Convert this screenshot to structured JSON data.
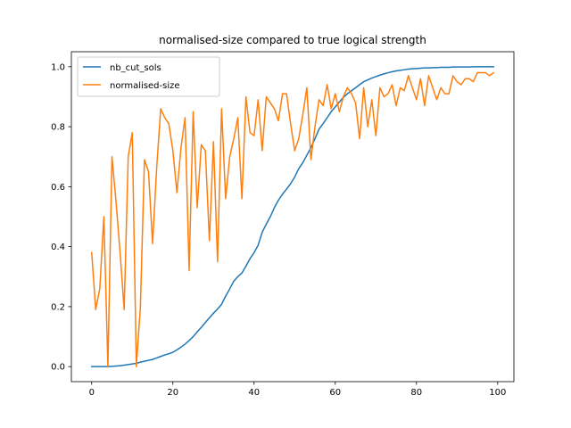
{
  "chart_data": {
    "type": "line",
    "title": "normalised-size compared to true logical strength",
    "xlabel": "",
    "ylabel": "",
    "xlim": [
      -5,
      104
    ],
    "ylim": [
      -0.05,
      1.05
    ],
    "xticks": [
      0,
      20,
      40,
      60,
      80,
      100
    ],
    "xtick_labels": [
      "0",
      "20",
      "40",
      "60",
      "80",
      "100"
    ],
    "yticks": [
      0.0,
      0.2,
      0.4,
      0.6,
      0.8,
      1.0
    ],
    "ytick_labels": [
      "0.0",
      "0.2",
      "0.4",
      "0.6",
      "0.8",
      "1.0"
    ],
    "grid": false,
    "legend_position": "top-left",
    "x": [
      0,
      1,
      2,
      3,
      4,
      5,
      6,
      7,
      8,
      9,
      10,
      11,
      12,
      13,
      14,
      15,
      16,
      17,
      18,
      19,
      20,
      21,
      22,
      23,
      24,
      25,
      26,
      27,
      28,
      29,
      30,
      31,
      32,
      33,
      34,
      35,
      36,
      37,
      38,
      39,
      40,
      41,
      42,
      43,
      44,
      45,
      46,
      47,
      48,
      49,
      50,
      51,
      52,
      53,
      54,
      55,
      56,
      57,
      58,
      59,
      60,
      61,
      62,
      63,
      64,
      65,
      66,
      67,
      68,
      69,
      70,
      71,
      72,
      73,
      74,
      75,
      76,
      77,
      78,
      79,
      80,
      81,
      82,
      83,
      84,
      85,
      86,
      87,
      88,
      89,
      90,
      91,
      92,
      93,
      94,
      95,
      96,
      97,
      98,
      99
    ],
    "series": [
      {
        "name": "nb_cut_sols",
        "color": "#1f77b4",
        "values": [
          0.0,
          0.0,
          0.0,
          0.0,
          0.0,
          0.001,
          0.002,
          0.003,
          0.005,
          0.007,
          0.009,
          0.011,
          0.015,
          0.018,
          0.021,
          0.024,
          0.029,
          0.034,
          0.039,
          0.043,
          0.048,
          0.056,
          0.065,
          0.075,
          0.087,
          0.1,
          0.116,
          0.131,
          0.147,
          0.163,
          0.178,
          0.192,
          0.208,
          0.235,
          0.259,
          0.285,
          0.3,
          0.312,
          0.335,
          0.36,
          0.38,
          0.405,
          0.448,
          0.475,
          0.5,
          0.53,
          0.555,
          0.575,
          0.592,
          0.61,
          0.632,
          0.66,
          0.68,
          0.705,
          0.73,
          0.76,
          0.792,
          0.81,
          0.83,
          0.85,
          0.866,
          0.882,
          0.898,
          0.91,
          0.92,
          0.93,
          0.94,
          0.95,
          0.956,
          0.962,
          0.967,
          0.972,
          0.976,
          0.98,
          0.983,
          0.986,
          0.988,
          0.99,
          0.992,
          0.993,
          0.994,
          0.995,
          0.996,
          0.996,
          0.997,
          0.997,
          0.998,
          0.998,
          0.998,
          0.999,
          0.999,
          0.999,
          0.999,
          0.999,
          1.0,
          1.0,
          1.0,
          1.0,
          1.0,
          1.0
        ]
      },
      {
        "name": "normalised-size",
        "color": "#ff7f0e",
        "values": [
          0.38,
          0.19,
          0.26,
          0.5,
          0.0,
          0.7,
          0.55,
          0.38,
          0.19,
          0.7,
          0.78,
          0.0,
          0.2,
          0.69,
          0.65,
          0.41,
          0.66,
          0.86,
          0.83,
          0.81,
          0.72,
          0.58,
          0.73,
          0.83,
          0.32,
          0.85,
          0.53,
          0.74,
          0.72,
          0.42,
          0.75,
          0.35,
          0.86,
          0.56,
          0.7,
          0.76,
          0.83,
          0.56,
          0.9,
          0.78,
          0.77,
          0.89,
          0.72,
          0.9,
          0.88,
          0.86,
          0.82,
          0.91,
          0.91,
          0.81,
          0.72,
          0.76,
          0.84,
          0.93,
          0.69,
          0.8,
          0.89,
          0.87,
          0.94,
          0.86,
          0.91,
          0.85,
          0.9,
          0.93,
          0.91,
          0.88,
          0.76,
          0.93,
          0.8,
          0.89,
          0.77,
          0.93,
          0.9,
          0.91,
          0.94,
          0.87,
          0.93,
          0.92,
          0.97,
          0.93,
          0.89,
          0.96,
          0.87,
          0.97,
          0.93,
          0.89,
          0.93,
          0.91,
          0.91,
          0.97,
          0.95,
          0.94,
          0.96,
          0.96,
          0.95,
          0.98,
          0.98,
          0.98,
          0.97,
          0.98
        ]
      }
    ]
  }
}
